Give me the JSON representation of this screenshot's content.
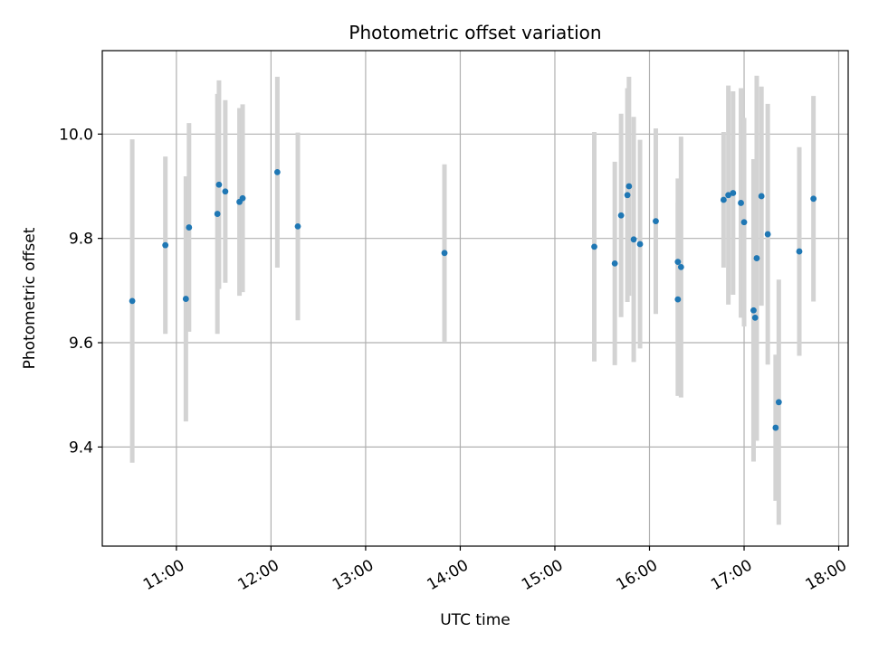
{
  "chart_data": {
    "type": "scatter",
    "title": "Photometric offset variation",
    "xlabel": "UTC time",
    "ylabel": "Photometric offset",
    "grid": true,
    "x_tick_labels": [
      "11:00",
      "12:00",
      "13:00",
      "14:00",
      "15:00",
      "16:00",
      "17:00",
      "18:00"
    ],
    "y_tick_labels": [
      "9.4",
      "9.6",
      "9.8",
      "10.0"
    ],
    "x_ticks": [
      "11:00",
      "12:00",
      "13:00",
      "14:00",
      "15:00",
      "16:00",
      "17:00",
      "18:00"
    ],
    "y_ticks": [
      9.4,
      9.6,
      9.8,
      10.0
    ],
    "xlim": [
      "10:13",
      "18:06"
    ],
    "ylim": [
      9.21,
      10.16
    ],
    "colors": {
      "points": "#1f77b4",
      "error_bars": "#d3d3d3",
      "grid": "#b0b0b0"
    },
    "points": [
      {
        "x": "10:32",
        "y": 9.68,
        "err": 0.31
      },
      {
        "x": "10:53",
        "y": 9.787,
        "err": 0.17
      },
      {
        "x": "11:06",
        "y": 9.684,
        "err": 0.235
      },
      {
        "x": "11:08",
        "y": 9.821,
        "err": 0.2
      },
      {
        "x": "11:26",
        "y": 9.847,
        "err": 0.23
      },
      {
        "x": "11:27",
        "y": 9.903,
        "err": 0.2
      },
      {
        "x": "11:31",
        "y": 9.89,
        "err": 0.175
      },
      {
        "x": "11:40",
        "y": 9.87,
        "err": 0.18
      },
      {
        "x": "11:42",
        "y": 9.877,
        "err": 0.18
      },
      {
        "x": "12:04",
        "y": 9.927,
        "err": 0.183
      },
      {
        "x": "12:17",
        "y": 9.823,
        "err": 0.18
      },
      {
        "x": "13:50",
        "y": 9.772,
        "err": 0.17
      },
      {
        "x": "15:25",
        "y": 9.784,
        "err": 0.22
      },
      {
        "x": "15:38",
        "y": 9.752,
        "err": 0.195
      },
      {
        "x": "15:42",
        "y": 9.844,
        "err": 0.195
      },
      {
        "x": "15:46",
        "y": 9.883,
        "err": 0.205
      },
      {
        "x": "15:47",
        "y": 9.9,
        "err": 0.21
      },
      {
        "x": "15:50",
        "y": 9.798,
        "err": 0.235
      },
      {
        "x": "15:54",
        "y": 9.789,
        "err": 0.2
      },
      {
        "x": "16:04",
        "y": 9.833,
        "err": 0.178
      },
      {
        "x": "16:18",
        "y": 9.683,
        "err": 0.185
      },
      {
        "x": "16:18",
        "y": 9.755,
        "err": 0.16
      },
      {
        "x": "16:20",
        "y": 9.745,
        "err": 0.25
      },
      {
        "x": "16:47",
        "y": 9.874,
        "err": 0.13
      },
      {
        "x": "16:50",
        "y": 9.883,
        "err": 0.21
      },
      {
        "x": "16:53",
        "y": 9.887,
        "err": 0.195
      },
      {
        "x": "16:58",
        "y": 9.868,
        "err": 0.22
      },
      {
        "x": "17:00",
        "y": 9.831,
        "err": 0.2
      },
      {
        "x": "17:06",
        "y": 9.662,
        "err": 0.29
      },
      {
        "x": "17:07",
        "y": 9.648,
        "err": 0.14
      },
      {
        "x": "17:08",
        "y": 9.762,
        "err": 0.35
      },
      {
        "x": "17:11",
        "y": 9.881,
        "err": 0.21
      },
      {
        "x": "17:15",
        "y": 9.808,
        "err": 0.25
      },
      {
        "x": "17:20",
        "y": 9.437,
        "err": 0.14
      },
      {
        "x": "17:22",
        "y": 9.486,
        "err": 0.235
      },
      {
        "x": "17:35",
        "y": 9.775,
        "err": 0.2
      },
      {
        "x": "17:44",
        "y": 9.876,
        "err": 0.197
      }
    ]
  }
}
